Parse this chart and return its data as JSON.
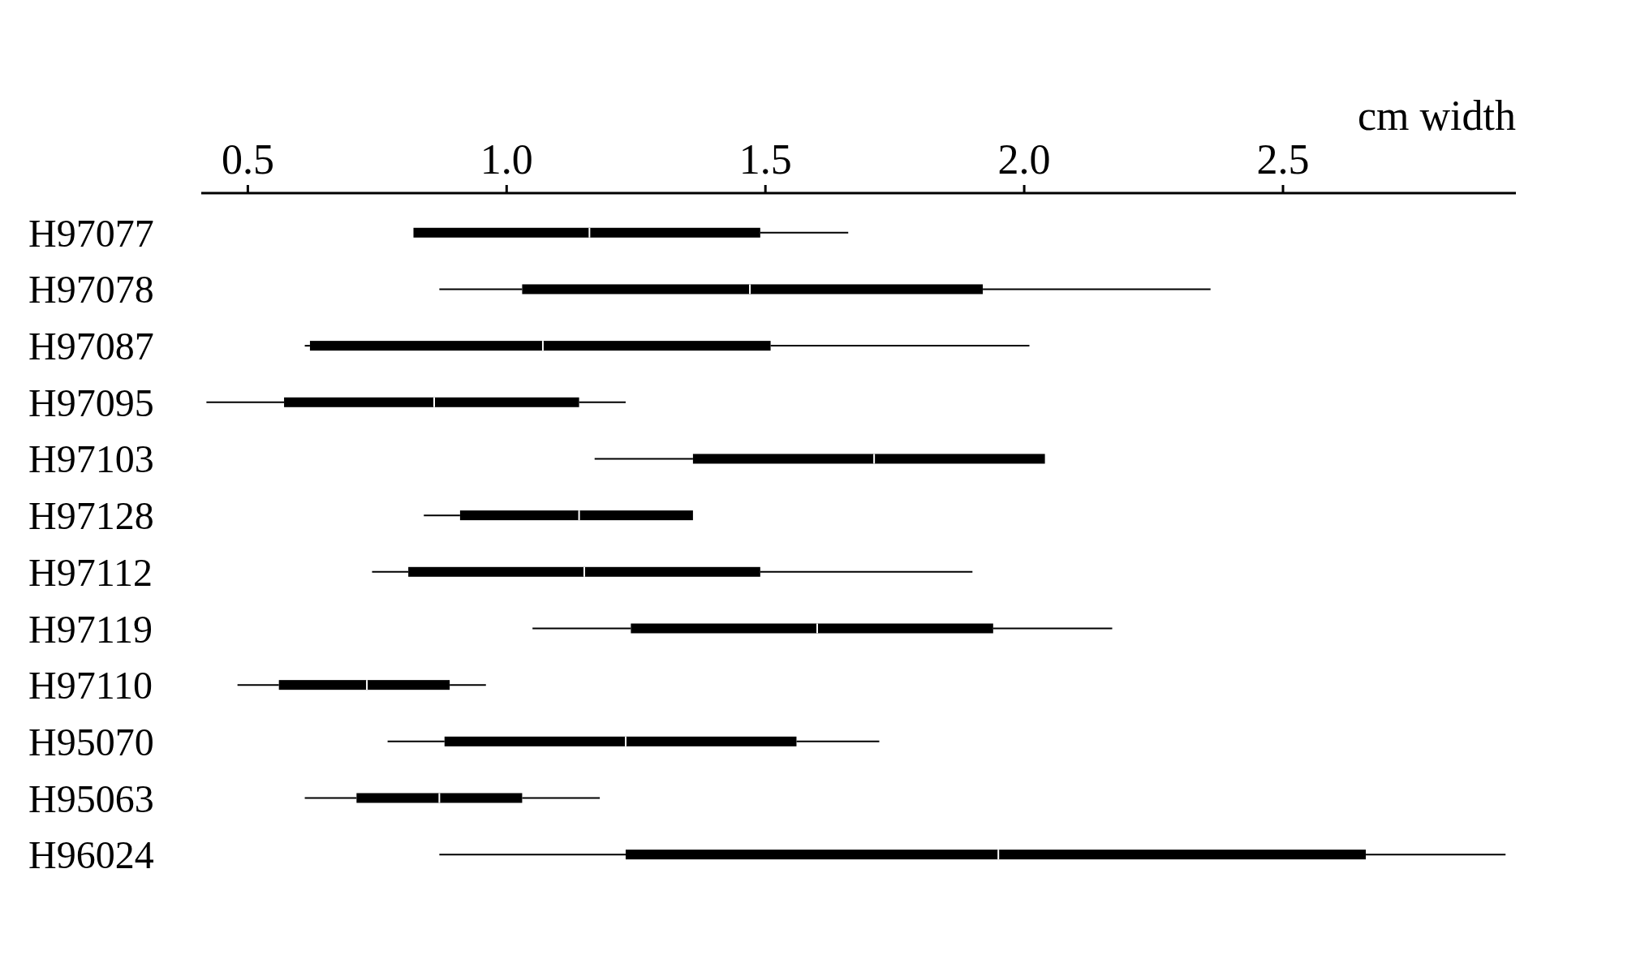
{
  "chart_data": {
    "type": "box",
    "orientation": "horizontal",
    "xlabel": "cm  width",
    "categories": [
      "H97077",
      "H97078",
      "H97087",
      "H97095",
      "H97103",
      "H97128",
      "H97112",
      "H97119",
      "H97110",
      "H95070",
      "H95063",
      "H96024"
    ],
    "color": "#000000",
    "boxes": [
      {
        "low": 0.82,
        "q1": 0.82,
        "median": 1.16,
        "q3": 1.49,
        "high": 1.66
      },
      {
        "low": 0.87,
        "q1": 1.03,
        "median": 1.47,
        "q3": 1.92,
        "high": 2.36
      },
      {
        "low": 0.61,
        "q1": 0.62,
        "median": 1.07,
        "q3": 1.51,
        "high": 2.01
      },
      {
        "low": 0.42,
        "q1": 0.57,
        "median": 0.86,
        "q3": 1.14,
        "high": 1.23
      },
      {
        "low": 1.17,
        "q1": 1.36,
        "median": 1.71,
        "q3": 2.04,
        "high": 2.04
      },
      {
        "low": 0.84,
        "q1": 0.91,
        "median": 1.14,
        "q3": 1.36,
        "high": 1.36
      },
      {
        "low": 0.74,
        "q1": 0.81,
        "median": 1.15,
        "q3": 1.49,
        "high": 1.9
      },
      {
        "low": 1.05,
        "q1": 1.24,
        "median": 1.6,
        "q3": 1.94,
        "high": 2.17
      },
      {
        "low": 0.48,
        "q1": 0.56,
        "median": 0.73,
        "q3": 0.89,
        "high": 0.96
      },
      {
        "low": 0.77,
        "q1": 0.88,
        "median": 1.23,
        "q3": 1.56,
        "high": 1.72
      },
      {
        "low": 0.61,
        "q1": 0.71,
        "median": 0.87,
        "q3": 1.03,
        "high": 1.18
      },
      {
        "low": 0.87,
        "q1": 1.23,
        "median": 1.95,
        "q3": 2.66,
        "high": 2.93
      }
    ],
    "xlim": [
      0.41,
      2.95
    ],
    "xticks": [
      0.5,
      {
        "value": 1,
        "label": "1.0"
      },
      1.5,
      {
        "value": 2,
        "label": "2.0"
      },
      2.5
    ]
  }
}
